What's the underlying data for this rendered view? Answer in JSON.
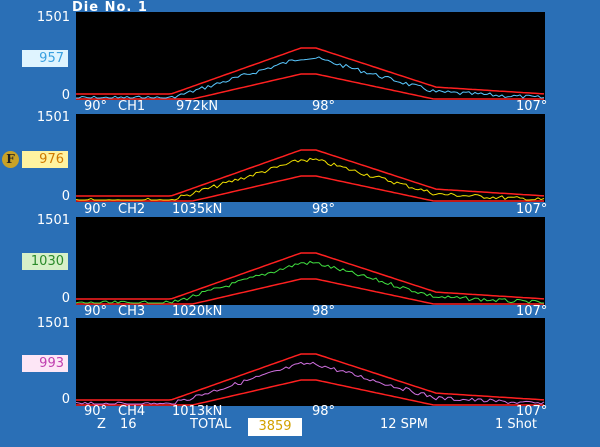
{
  "header": {
    "title": "Die No.  1"
  },
  "scale": {
    "max": "1501",
    "min": "0"
  },
  "channels": [
    {
      "ch": "CH1",
      "value": "957",
      "box_bg": "#dff4ff",
      "box_fg": "#3aa0e0",
      "trace": "#5ac8ff",
      "peak_label": "972kN",
      "x_start": "90°",
      "x_mid": "98°",
      "x_end": "107°"
    },
    {
      "ch": "CH2",
      "value": "976",
      "box_bg": "#fff3a0",
      "box_fg": "#d07a00",
      "trace": "#f0e000",
      "peak_label": "1035kN",
      "x_start": "90°",
      "x_mid": "98°",
      "x_end": "107°"
    },
    {
      "ch": "CH3",
      "value": "1030",
      "box_bg": "#d7f0c8",
      "box_fg": "#2a8a2a",
      "trace": "#40e040",
      "peak_label": "1020kN",
      "x_start": "90°",
      "x_mid": "98°",
      "x_end": "107°"
    },
    {
      "ch": "CH4",
      "value": "993",
      "box_bg": "#fde6f6",
      "box_fg": "#c040b0",
      "trace": "#d070e0",
      "peak_label": "1013kN",
      "x_start": "90°",
      "x_mid": "98°",
      "x_end": "107°"
    }
  ],
  "badge": {
    "label": "F"
  },
  "status": {
    "z_label": "Z",
    "z_value": "16",
    "total_label": "TOTAL",
    "total_value": "3859",
    "spm": "12 SPM",
    "mode": "1 Shot"
  },
  "colors": {
    "limit": "#ff2020",
    "background": "#2a6fb6",
    "plot_bg": "#000000"
  }
}
